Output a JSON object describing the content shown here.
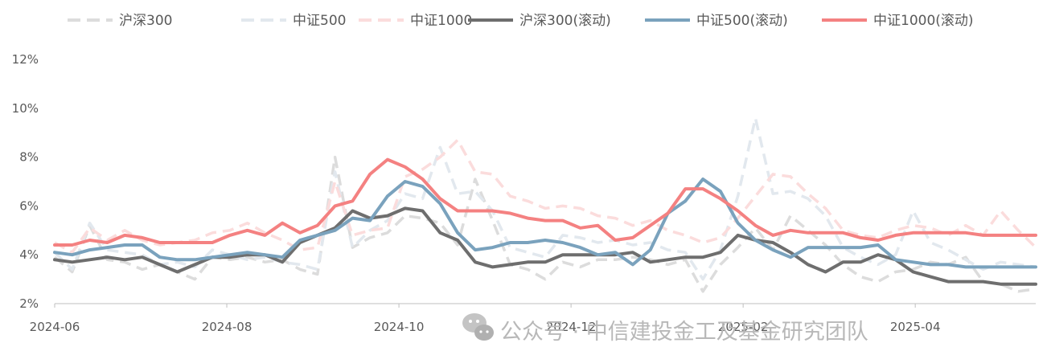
{
  "chart_data": {
    "type": "line",
    "title": "",
    "xlabel": "",
    "ylabel": "",
    "x_ticks": [
      "2024-06",
      "2024-08",
      "2024-10",
      "2024-12",
      "2025-02",
      "2025-04"
    ],
    "y_ticks": [
      2,
      4,
      6,
      8,
      10,
      12
    ],
    "y_tick_labels": [
      "2%",
      "4%",
      "6%",
      "8%",
      "10%",
      "12%"
    ],
    "ylim": [
      2,
      12
    ],
    "xlim": [
      0,
      56
    ],
    "grid": false,
    "legend_position": "top",
    "series": [
      {
        "name": "沪深300",
        "style": "dashed",
        "color": "#dcdcdc",
        "values": [
          3.9,
          3.3,
          5.2,
          3.8,
          3.7,
          3.4,
          3.6,
          3.3,
          3.0,
          3.9,
          3.8,
          3.9,
          3.7,
          3.8,
          3.4,
          3.2,
          8.0,
          4.3,
          4.7,
          4.9,
          5.6,
          5.5,
          5.3,
          4.4,
          7.1,
          5.4,
          3.6,
          3.4,
          3.0,
          3.7,
          3.5,
          3.8,
          3.8,
          3.9,
          3.8,
          3.6,
          3.8,
          2.5,
          3.6,
          4.3,
          5.1,
          4.2,
          5.6,
          5.0,
          4.4,
          3.6,
          3.1,
          2.9,
          3.3,
          3.4,
          3.7,
          3.6,
          3.9,
          2.9,
          2.8,
          2.5,
          2.6
        ]
      },
      {
        "name": "中证500",
        "style": "dashed",
        "color": "#e2e8ee",
        "values": [
          4.1,
          3.4,
          5.3,
          4.2,
          4.1,
          4.0,
          3.6,
          3.7,
          3.5,
          4.2,
          4.0,
          3.8,
          3.9,
          3.7,
          3.6,
          3.4,
          7.4,
          4.3,
          5.0,
          5.4,
          6.5,
          6.3,
          8.4,
          6.5,
          6.6,
          5.8,
          4.3,
          4.1,
          3.9,
          4.8,
          4.7,
          4.5,
          4.6,
          4.4,
          4.5,
          4.2,
          4.1,
          3.0,
          4.2,
          6.4,
          9.6,
          6.5,
          6.6,
          6.3,
          5.6,
          4.3,
          3.9,
          3.6,
          4.0,
          5.8,
          4.5,
          4.2,
          3.8,
          3.4,
          3.7,
          3.6,
          3.5
        ]
      },
      {
        "name": "中证1000",
        "style": "dashed",
        "color": "#fbdcdc",
        "values": [
          4.5,
          4.1,
          5.1,
          4.6,
          5.0,
          4.6,
          4.4,
          4.5,
          4.6,
          4.9,
          5.0,
          5.3,
          4.9,
          4.6,
          4.2,
          4.3,
          7.0,
          4.8,
          5.0,
          5.1,
          7.2,
          7.5,
          8.0,
          8.7,
          7.4,
          7.3,
          6.4,
          6.2,
          5.9,
          6.0,
          5.9,
          5.6,
          5.5,
          5.2,
          5.4,
          5.0,
          4.8,
          4.5,
          4.7,
          5.5,
          6.4,
          7.3,
          7.2,
          6.5,
          5.9,
          5.0,
          4.8,
          4.7,
          5.0,
          5.2,
          5.1,
          4.8,
          5.2,
          4.8,
          5.8,
          5.0,
          4.3
        ]
      },
      {
        "name": "沪深300(滚动)",
        "style": "solid",
        "color": "#6e6e6e",
        "values": [
          3.8,
          3.7,
          3.8,
          3.9,
          3.8,
          3.9,
          3.6,
          3.3,
          3.6,
          3.9,
          3.9,
          4.0,
          4.0,
          3.7,
          4.5,
          4.8,
          5.1,
          5.8,
          5.5,
          5.6,
          5.9,
          5.8,
          4.9,
          4.6,
          3.7,
          3.5,
          3.6,
          3.7,
          3.7,
          4.0,
          4.0,
          4.0,
          4.0,
          4.1,
          3.7,
          3.8,
          3.9,
          3.9,
          4.1,
          4.8,
          4.6,
          4.5,
          4.1,
          3.6,
          3.3,
          3.7,
          3.7,
          4.0,
          3.8,
          3.3,
          3.1,
          2.9,
          2.9,
          2.9,
          2.8,
          2.8,
          2.8
        ]
      },
      {
        "name": "中证500(滚动)",
        "style": "solid",
        "color": "#7aa2bd",
        "values": [
          4.1,
          4.0,
          4.2,
          4.3,
          4.4,
          4.4,
          3.9,
          3.8,
          3.8,
          3.9,
          4.0,
          4.1,
          4.0,
          3.9,
          4.6,
          4.8,
          5.0,
          5.5,
          5.4,
          6.4,
          7.0,
          6.8,
          6.1,
          4.9,
          4.2,
          4.3,
          4.5,
          4.5,
          4.6,
          4.5,
          4.3,
          4.0,
          4.1,
          3.6,
          4.2,
          5.7,
          6.2,
          7.1,
          6.6,
          5.3,
          4.6,
          4.2,
          3.9,
          4.3,
          4.3,
          4.3,
          4.3,
          4.4,
          3.8,
          3.7,
          3.6,
          3.6,
          3.5,
          3.5,
          3.5,
          3.5,
          3.5
        ]
      },
      {
        "name": "中证1000(滚动)",
        "style": "solid",
        "color": "#f48181",
        "values": [
          4.4,
          4.4,
          4.6,
          4.5,
          4.8,
          4.7,
          4.5,
          4.5,
          4.5,
          4.5,
          4.8,
          5.0,
          4.8,
          5.3,
          4.9,
          5.2,
          6.0,
          6.2,
          7.3,
          7.9,
          7.6,
          7.1,
          6.3,
          5.8,
          5.8,
          5.8,
          5.7,
          5.5,
          5.4,
          5.4,
          5.1,
          5.2,
          4.6,
          4.7,
          5.2,
          5.7,
          6.7,
          6.7,
          6.3,
          5.8,
          5.2,
          4.8,
          5.0,
          4.9,
          4.9,
          4.9,
          4.7,
          4.6,
          4.8,
          4.9,
          4.9,
          4.9,
          4.9,
          4.8,
          4.8,
          4.8,
          4.8
        ]
      }
    ]
  },
  "watermark": {
    "icon": "wechat-icon",
    "text": "公众号 · 中信建投金工及基金研究团队"
  }
}
